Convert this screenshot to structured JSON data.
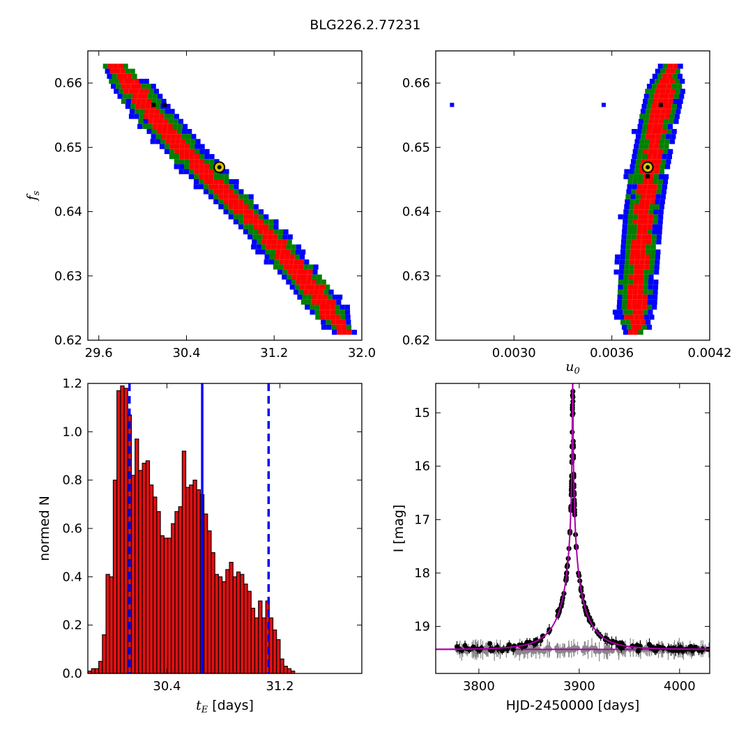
{
  "suptitle": "BLG226.2.77231",
  "colors": {
    "sigma1": "#ff0000",
    "sigma2": "#008000",
    "sigma3": "#0000ff",
    "best_point": "#000000",
    "marker_face": "#d4c700",
    "hist_bar": "#dd1111",
    "hist_lines": "#0000ff",
    "model": "#aa00aa",
    "data_main": "#000000",
    "data_second": "#888888"
  },
  "chart_data": [
    {
      "id": "tE-fs",
      "type": "heatmap",
      "title": "",
      "xlabel": "",
      "ylabel": "f_s",
      "xlim": [
        29.5,
        32.0
      ],
      "ylim": [
        0.62,
        0.665
      ],
      "xticks": [
        29.6,
        30.4,
        31.2,
        32.0
      ],
      "xtick_labels": [
        "29.6",
        "30.4",
        "31.2",
        "32.0"
      ],
      "yticks": [
        0.62,
        0.63,
        0.64,
        0.65,
        0.66
      ],
      "ytick_labels": [
        "0.62",
        "0.63",
        "0.64",
        "0.65",
        "0.66"
      ],
      "levels": [
        "1 sigma",
        "2 sigma",
        "3 sigma"
      ],
      "ridge": [
        [
          29.74,
          0.663
        ],
        [
          30.0,
          0.657
        ],
        [
          30.35,
          0.65
        ],
        [
          30.75,
          0.643
        ],
        [
          31.1,
          0.637
        ],
        [
          31.5,
          0.629
        ],
        [
          31.85,
          0.621
        ]
      ],
      "best_fit": [
        30.7,
        0.6469
      ],
      "extra_points": [
        [
          30.1,
          0.6566
        ],
        [
          30.2,
          0.6566
        ]
      ]
    },
    {
      "id": "u0-fs",
      "type": "heatmap",
      "title": "",
      "xlabel": "u_0",
      "ylabel": "",
      "xlim": [
        0.00252,
        0.0042
      ],
      "ylim": [
        0.62,
        0.665
      ],
      "xticks": [
        0.003,
        0.0036,
        0.0042
      ],
      "xtick_labels": [
        "0.0030",
        "0.0036",
        "0.0042"
      ],
      "yticks": [
        0.62,
        0.63,
        0.64,
        0.65,
        0.66
      ],
      "ytick_labels": [
        "0.62",
        "0.63",
        "0.64",
        "0.65",
        "0.66"
      ],
      "levels": [
        "1 sigma",
        "2 sigma",
        "3 sigma"
      ],
      "ridge": [
        [
          0.00374,
          0.621
        ],
        [
          0.00376,
          0.63
        ],
        [
          0.00379,
          0.64
        ],
        [
          0.00383,
          0.647
        ],
        [
          0.00389,
          0.655
        ],
        [
          0.00396,
          0.663
        ]
      ],
      "best_fit": [
        0.00382,
        0.6469
      ],
      "extra_points": [
        [
          0.0039,
          0.6566
        ],
        [
          0.00382,
          0.6455
        ]
      ],
      "outlier_points": [
        [
          0.00262,
          0.6566
        ],
        [
          0.00355,
          0.6566
        ]
      ]
    },
    {
      "id": "tE-hist",
      "type": "bar",
      "title": "",
      "xlabel": "t_E",
      "xlabel_suffix": " [days]",
      "ylabel": "normed N",
      "xlim": [
        29.84,
        31.78
      ],
      "ylim": [
        0,
        1.2
      ],
      "xticks": [
        30.4,
        31.2
      ],
      "xtick_labels": [
        "30.4",
        "31.2"
      ],
      "yticks": [
        0,
        0.2,
        0.4,
        0.6,
        0.8,
        1.0,
        1.2
      ],
      "ytick_labels": [
        "0.0",
        "0.2",
        "0.4",
        "0.6",
        "0.8",
        "1.0",
        "1.2"
      ],
      "bin_start": 29.84,
      "bin_width": 0.0257,
      "values": [
        0.01,
        0.02,
        0.02,
        0.05,
        0.16,
        0.41,
        0.4,
        0.8,
        1.17,
        1.19,
        1.18,
        1.07,
        0.82,
        0.97,
        0.84,
        0.87,
        0.88,
        0.78,
        0.73,
        0.67,
        0.57,
        0.56,
        0.56,
        0.62,
        0.67,
        0.69,
        0.92,
        0.77,
        0.78,
        0.8,
        0.76,
        0.74,
        0.66,
        0.59,
        0.5,
        0.41,
        0.4,
        0.38,
        0.43,
        0.46,
        0.4,
        0.42,
        0.41,
        0.37,
        0.34,
        0.27,
        0.23,
        0.3,
        0.23,
        0.3,
        0.23,
        0.18,
        0.14,
        0.06,
        0.03,
        0.02,
        0.01
      ],
      "median": 30.65,
      "bounds": [
        30.135,
        31.12
      ]
    },
    {
      "id": "lightcurve",
      "type": "scatter",
      "title": "",
      "xlabel": "HJD-2450000 [days]",
      "ylabel": "I [mag]",
      "xlim": [
        3757,
        4030
      ],
      "ylim": [
        19.88,
        14.45
      ],
      "xticks": [
        3800,
        3900,
        4000
      ],
      "xtick_labels": [
        "3800",
        "3900",
        "4000"
      ],
      "yticks": [
        15,
        16,
        17,
        18,
        19
      ],
      "ytick_labels": [
        "15",
        "16",
        "17",
        "18",
        "19"
      ],
      "model": {
        "t0": 3893.5,
        "tE": 30.65,
        "u0": 0.00382,
        "baseline": 19.43,
        "fs": 0.6469
      },
      "second_baseline": 19.43
    }
  ]
}
